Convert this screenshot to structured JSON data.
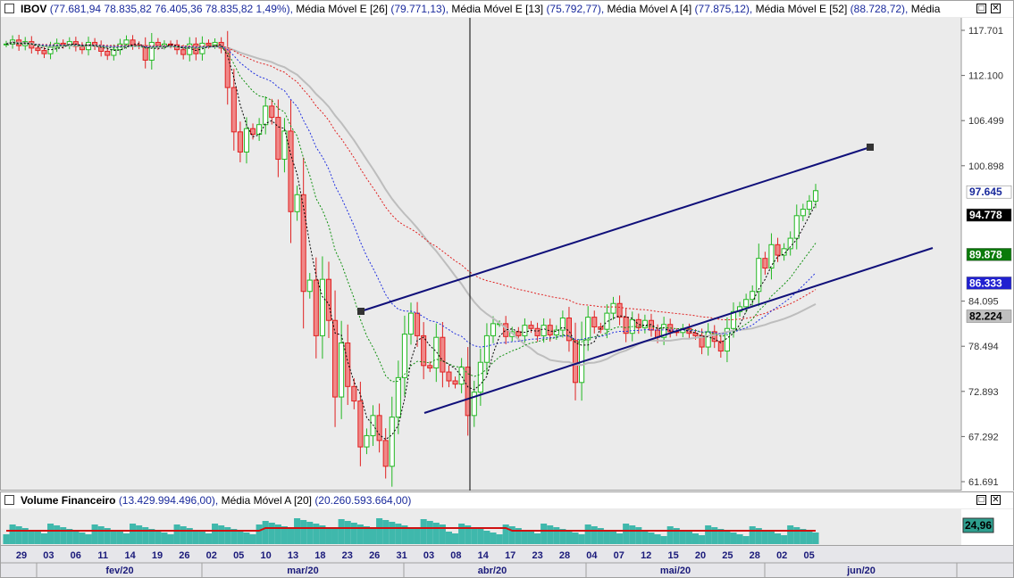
{
  "main_panel": {
    "symbol": "IBOV",
    "ohlc_text": "(77.681,94  78.835,82  76.405,36  78.835,82  1,49%),",
    "indicators": [
      {
        "label": "Média Móvel E [26]",
        "value": "(79.771,13),"
      },
      {
        "label": "Média Móvel E [13]",
        "value": "(75.792,77),"
      },
      {
        "label": "Média Móvel A [4]",
        "value": "(77.875,12),"
      },
      {
        "label": "Média Móvel E [52]",
        "value": "(88.728,72),"
      },
      {
        "label": "Média"
      }
    ],
    "y_ticks": [
      "117.701",
      "112.100",
      "106.499",
      "100.898",
      "84.095",
      "78.494",
      "72.893",
      "67.292",
      "61.691"
    ],
    "price_tags": [
      {
        "text": "97.645",
        "value": 97645,
        "color": "#1a2a9c",
        "bg": "#ffffff"
      },
      {
        "text": "94.778",
        "value": 94778,
        "color": "#ffffff",
        "bg": "#000000"
      },
      {
        "text": "89.878",
        "value": 89878,
        "color": "#ffffff",
        "bg": "#0a7a0a"
      },
      {
        "text": "86.333",
        "value": 86333,
        "color": "#ffffff",
        "bg": "#2020d0"
      },
      {
        "text": "82.224",
        "value": 82224,
        "color": "#000000",
        "bg": "#c0c0c0"
      }
    ],
    "close_icon": "close-icon",
    "checkbox_icon": "checkbox-icon"
  },
  "volume_panel": {
    "title": "Volume Financeiro",
    "value": "(13.429.994.496,00),",
    "ma_label": "Média Móvel A [20]",
    "ma_value": "(20.260.593.664,00)",
    "tag": "24,96",
    "tag_bg": "#2e9e8e"
  },
  "x_axis": {
    "days": [
      "29",
      "03",
      "06",
      "11",
      "14",
      "19",
      "26",
      "02",
      "05",
      "10",
      "13",
      "18",
      "23",
      "26",
      "31",
      "03",
      "08",
      "14",
      "17",
      "23",
      "28",
      "04",
      "07",
      "12",
      "15",
      "20",
      "25",
      "28",
      "02",
      "05"
    ],
    "months": [
      "fev/20",
      "mar/20",
      "abr/20",
      "mai/20",
      "jun/20"
    ]
  },
  "chart_data": {
    "type": "candlestick",
    "ylim": [
      61691,
      117701
    ],
    "x_ticks": [
      "29",
      "03",
      "06",
      "11",
      "14",
      "19",
      "26",
      "02",
      "05",
      "10",
      "13",
      "18",
      "23",
      "26",
      "31",
      "03",
      "08",
      "14",
      "17",
      "23",
      "28",
      "04",
      "07",
      "12",
      "15",
      "20",
      "25",
      "28",
      "02",
      "05"
    ],
    "colors": {
      "up": "#22b822",
      "down": "#e02020",
      "ema26": "#2030e0",
      "ema13": "#109010",
      "sma4": "#000000",
      "ema52": "#e02020",
      "gray_ma": "#bdbdbd",
      "channel": "#10107a",
      "volume": "#3fb8ac",
      "volume_ma": "#d01010"
    },
    "close_series": [
      116000,
      116500,
      115800,
      116300,
      115500,
      115200,
      114800,
      115600,
      116100,
      115900,
      116300,
      115700,
      115300,
      116200,
      115800,
      115100,
      114600,
      115300,
      116000,
      116500,
      115900,
      115800,
      114000,
      116200,
      115800,
      116000,
      115900,
      115300,
      114700,
      116000,
      114800,
      116100,
      115900,
      116200,
      115500,
      110600,
      105100,
      102600,
      105500,
      104800,
      106000,
      108300,
      106900,
      101700,
      105200,
      95200,
      97300,
      85300,
      86700,
      79800,
      86800,
      81700,
      72200,
      78900,
      73500,
      71700,
      66000,
      67400,
      69900,
      66800,
      63600,
      69700,
      74600,
      80000,
      82600,
      79800,
      76100,
      75800,
      79600,
      75300,
      74200,
      73800,
      75900,
      69900,
      72800,
      76500,
      79800,
      81300,
      81300,
      79700,
      80300,
      79800,
      81100,
      80700,
      79800,
      81100,
      79900,
      80500,
      82000,
      79200,
      74000,
      79300,
      82100,
      80900,
      80600,
      82600,
      83800,
      82100,
      80100,
      81800,
      80800,
      81700,
      80500,
      79600,
      81200,
      80300,
      80200,
      80700,
      80100,
      79800,
      78400,
      80300,
      79100,
      77900,
      80700,
      82800,
      83400,
      84300,
      85300,
      89400,
      88200,
      91100,
      89800,
      90600,
      91900,
      94700,
      95500,
      96500,
      97800
    ],
    "ema26_end": 86333,
    "ema13_end": 89878,
    "sma4_end": 94778,
    "ema52_end": 88728,
    "volume_tag": 24.96
  }
}
